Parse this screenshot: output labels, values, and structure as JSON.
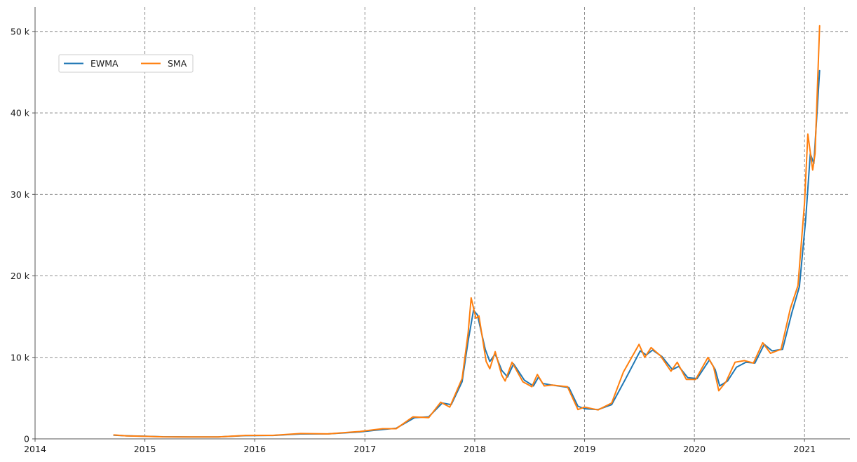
{
  "colors": {
    "ewma": "#1f77b4",
    "sma": "#ff7f0e",
    "grid": "#7f7f7f",
    "axis": "#555555"
  },
  "chart_data": {
    "type": "line",
    "title": "",
    "xlabel": "",
    "ylabel": "",
    "x_axis_type": "date",
    "xlim": [
      "2014-01-01",
      "2021-06-01"
    ],
    "ylim": [
      0,
      53000
    ],
    "grid": true,
    "legend_placement": "upper-left",
    "x_ticks": [
      {
        "date": "2014-01-01",
        "label": "2014"
      },
      {
        "date": "2015-01-01",
        "label": "2015"
      },
      {
        "date": "2016-01-01",
        "label": "2016"
      },
      {
        "date": "2017-01-01",
        "label": "2017"
      },
      {
        "date": "2018-01-01",
        "label": "2018"
      },
      {
        "date": "2019-01-01",
        "label": "2019"
      },
      {
        "date": "2020-01-01",
        "label": "2020"
      },
      {
        "date": "2021-01-01",
        "label": "2021"
      }
    ],
    "y_ticks": [
      {
        "value": 0,
        "label": "0"
      },
      {
        "value": 10000,
        "label": "10 k"
      },
      {
        "value": 20000,
        "label": "20 k"
      },
      {
        "value": 30000,
        "label": "30 k"
      },
      {
        "value": 40000,
        "label": "40 k"
      },
      {
        "value": 50000,
        "label": "50 k"
      }
    ],
    "series": [
      {
        "name": "EWMA",
        "color_key": "ewma",
        "points": [
          [
            "2014-09-20",
            450
          ],
          [
            "2014-11-01",
            380
          ],
          [
            "2015-01-01",
            330
          ],
          [
            "2015-03-01",
            260
          ],
          [
            "2015-06-01",
            240
          ],
          [
            "2015-09-01",
            240
          ],
          [
            "2015-12-01",
            400
          ],
          [
            "2016-03-01",
            420
          ],
          [
            "2016-06-01",
            600
          ],
          [
            "2016-09-01",
            610
          ],
          [
            "2016-12-15",
            850
          ],
          [
            "2017-03-01",
            1150
          ],
          [
            "2017-04-15",
            1300
          ],
          [
            "2017-06-15",
            2600
          ],
          [
            "2017-08-01",
            2700
          ],
          [
            "2017-09-15",
            4400
          ],
          [
            "2017-10-15",
            4200
          ],
          [
            "2017-11-20",
            7000
          ],
          [
            "2017-12-10",
            12000
          ],
          [
            "2017-12-28",
            15800
          ],
          [
            "2018-01-10",
            15200
          ],
          [
            "2018-02-05",
            11000
          ],
          [
            "2018-02-20",
            9500
          ],
          [
            "2018-03-10",
            10400
          ],
          [
            "2018-04-01",
            8400
          ],
          [
            "2018-04-20",
            7600
          ],
          [
            "2018-05-10",
            9200
          ],
          [
            "2018-06-15",
            7200
          ],
          [
            "2018-07-15",
            6500
          ],
          [
            "2018-08-01",
            7600
          ],
          [
            "2018-08-15",
            6800
          ],
          [
            "2018-09-15",
            6600
          ],
          [
            "2018-11-10",
            6300
          ],
          [
            "2018-12-10",
            4000
          ],
          [
            "2019-01-01",
            3700
          ],
          [
            "2019-02-15",
            3600
          ],
          [
            "2019-04-01",
            4200
          ],
          [
            "2019-05-15",
            7200
          ],
          [
            "2019-07-05",
            10800
          ],
          [
            "2019-07-25",
            10300
          ],
          [
            "2019-08-15",
            10900
          ],
          [
            "2019-09-15",
            10100
          ],
          [
            "2019-10-20",
            8500
          ],
          [
            "2019-11-10",
            8900
          ],
          [
            "2019-12-10",
            7500
          ],
          [
            "2020-01-10",
            7400
          ],
          [
            "2020-02-20",
            9700
          ],
          [
            "2020-03-10",
            8500
          ],
          [
            "2020-03-25",
            6500
          ],
          [
            "2020-04-20",
            7100
          ],
          [
            "2020-05-20",
            8800
          ],
          [
            "2020-06-20",
            9400
          ],
          [
            "2020-07-20",
            9300
          ],
          [
            "2020-08-20",
            11600
          ],
          [
            "2020-09-15",
            10800
          ],
          [
            "2020-10-20",
            11000
          ],
          [
            "2020-11-20",
            15500
          ],
          [
            "2020-12-15",
            18700
          ],
          [
            "2021-01-05",
            27000
          ],
          [
            "2021-01-20",
            35000
          ],
          [
            "2021-02-01",
            33800
          ],
          [
            "2021-02-20",
            45200
          ]
        ]
      },
      {
        "name": "SMA",
        "color_key": "sma",
        "points": [
          [
            "2014-09-20",
            480
          ],
          [
            "2014-11-01",
            370
          ],
          [
            "2015-01-01",
            310
          ],
          [
            "2015-03-01",
            250
          ],
          [
            "2015-06-01",
            230
          ],
          [
            "2015-09-01",
            230
          ],
          [
            "2015-12-01",
            420
          ],
          [
            "2016-03-01",
            430
          ],
          [
            "2016-06-01",
            650
          ],
          [
            "2016-09-01",
            610
          ],
          [
            "2016-12-15",
            900
          ],
          [
            "2017-03-01",
            1250
          ],
          [
            "2017-04-15",
            1250
          ],
          [
            "2017-06-10",
            2700
          ],
          [
            "2017-08-01",
            2600
          ],
          [
            "2017-09-10",
            4500
          ],
          [
            "2017-10-10",
            3900
          ],
          [
            "2017-11-20",
            7400
          ],
          [
            "2017-12-10",
            13000
          ],
          [
            "2017-12-20",
            17300
          ],
          [
            "2018-01-05",
            14800
          ],
          [
            "2018-01-15",
            15100
          ],
          [
            "2018-02-08",
            9500
          ],
          [
            "2018-02-20",
            8600
          ],
          [
            "2018-03-10",
            10700
          ],
          [
            "2018-04-01",
            7800
          ],
          [
            "2018-04-12",
            7100
          ],
          [
            "2018-05-05",
            9400
          ],
          [
            "2018-06-10",
            7000
          ],
          [
            "2018-07-10",
            6400
          ],
          [
            "2018-07-28",
            7900
          ],
          [
            "2018-08-20",
            6500
          ],
          [
            "2018-09-15",
            6600
          ],
          [
            "2018-11-05",
            6400
          ],
          [
            "2018-12-10",
            3600
          ],
          [
            "2019-01-01",
            3900
          ],
          [
            "2019-02-15",
            3550
          ],
          [
            "2019-04-01",
            4400
          ],
          [
            "2019-05-10",
            8200
          ],
          [
            "2019-07-01",
            11600
          ],
          [
            "2019-07-20",
            10000
          ],
          [
            "2019-08-10",
            11200
          ],
          [
            "2019-09-10",
            10200
          ],
          [
            "2019-10-15",
            8300
          ],
          [
            "2019-11-05",
            9400
          ],
          [
            "2019-12-05",
            7300
          ],
          [
            "2020-01-05",
            7300
          ],
          [
            "2020-02-15",
            10000
          ],
          [
            "2020-03-05",
            8800
          ],
          [
            "2020-03-22",
            5900
          ],
          [
            "2020-04-15",
            7000
          ],
          [
            "2020-05-15",
            9400
          ],
          [
            "2020-06-15",
            9600
          ],
          [
            "2020-07-15",
            9300
          ],
          [
            "2020-08-15",
            11800
          ],
          [
            "2020-09-10",
            10500
          ],
          [
            "2020-10-15",
            11000
          ],
          [
            "2020-11-15",
            16000
          ],
          [
            "2020-12-10",
            18800
          ],
          [
            "2021-01-01",
            29000
          ],
          [
            "2021-01-12",
            37400
          ],
          [
            "2021-01-28",
            33000
          ],
          [
            "2021-02-05",
            35000
          ],
          [
            "2021-02-20",
            50700
          ]
        ]
      }
    ]
  }
}
